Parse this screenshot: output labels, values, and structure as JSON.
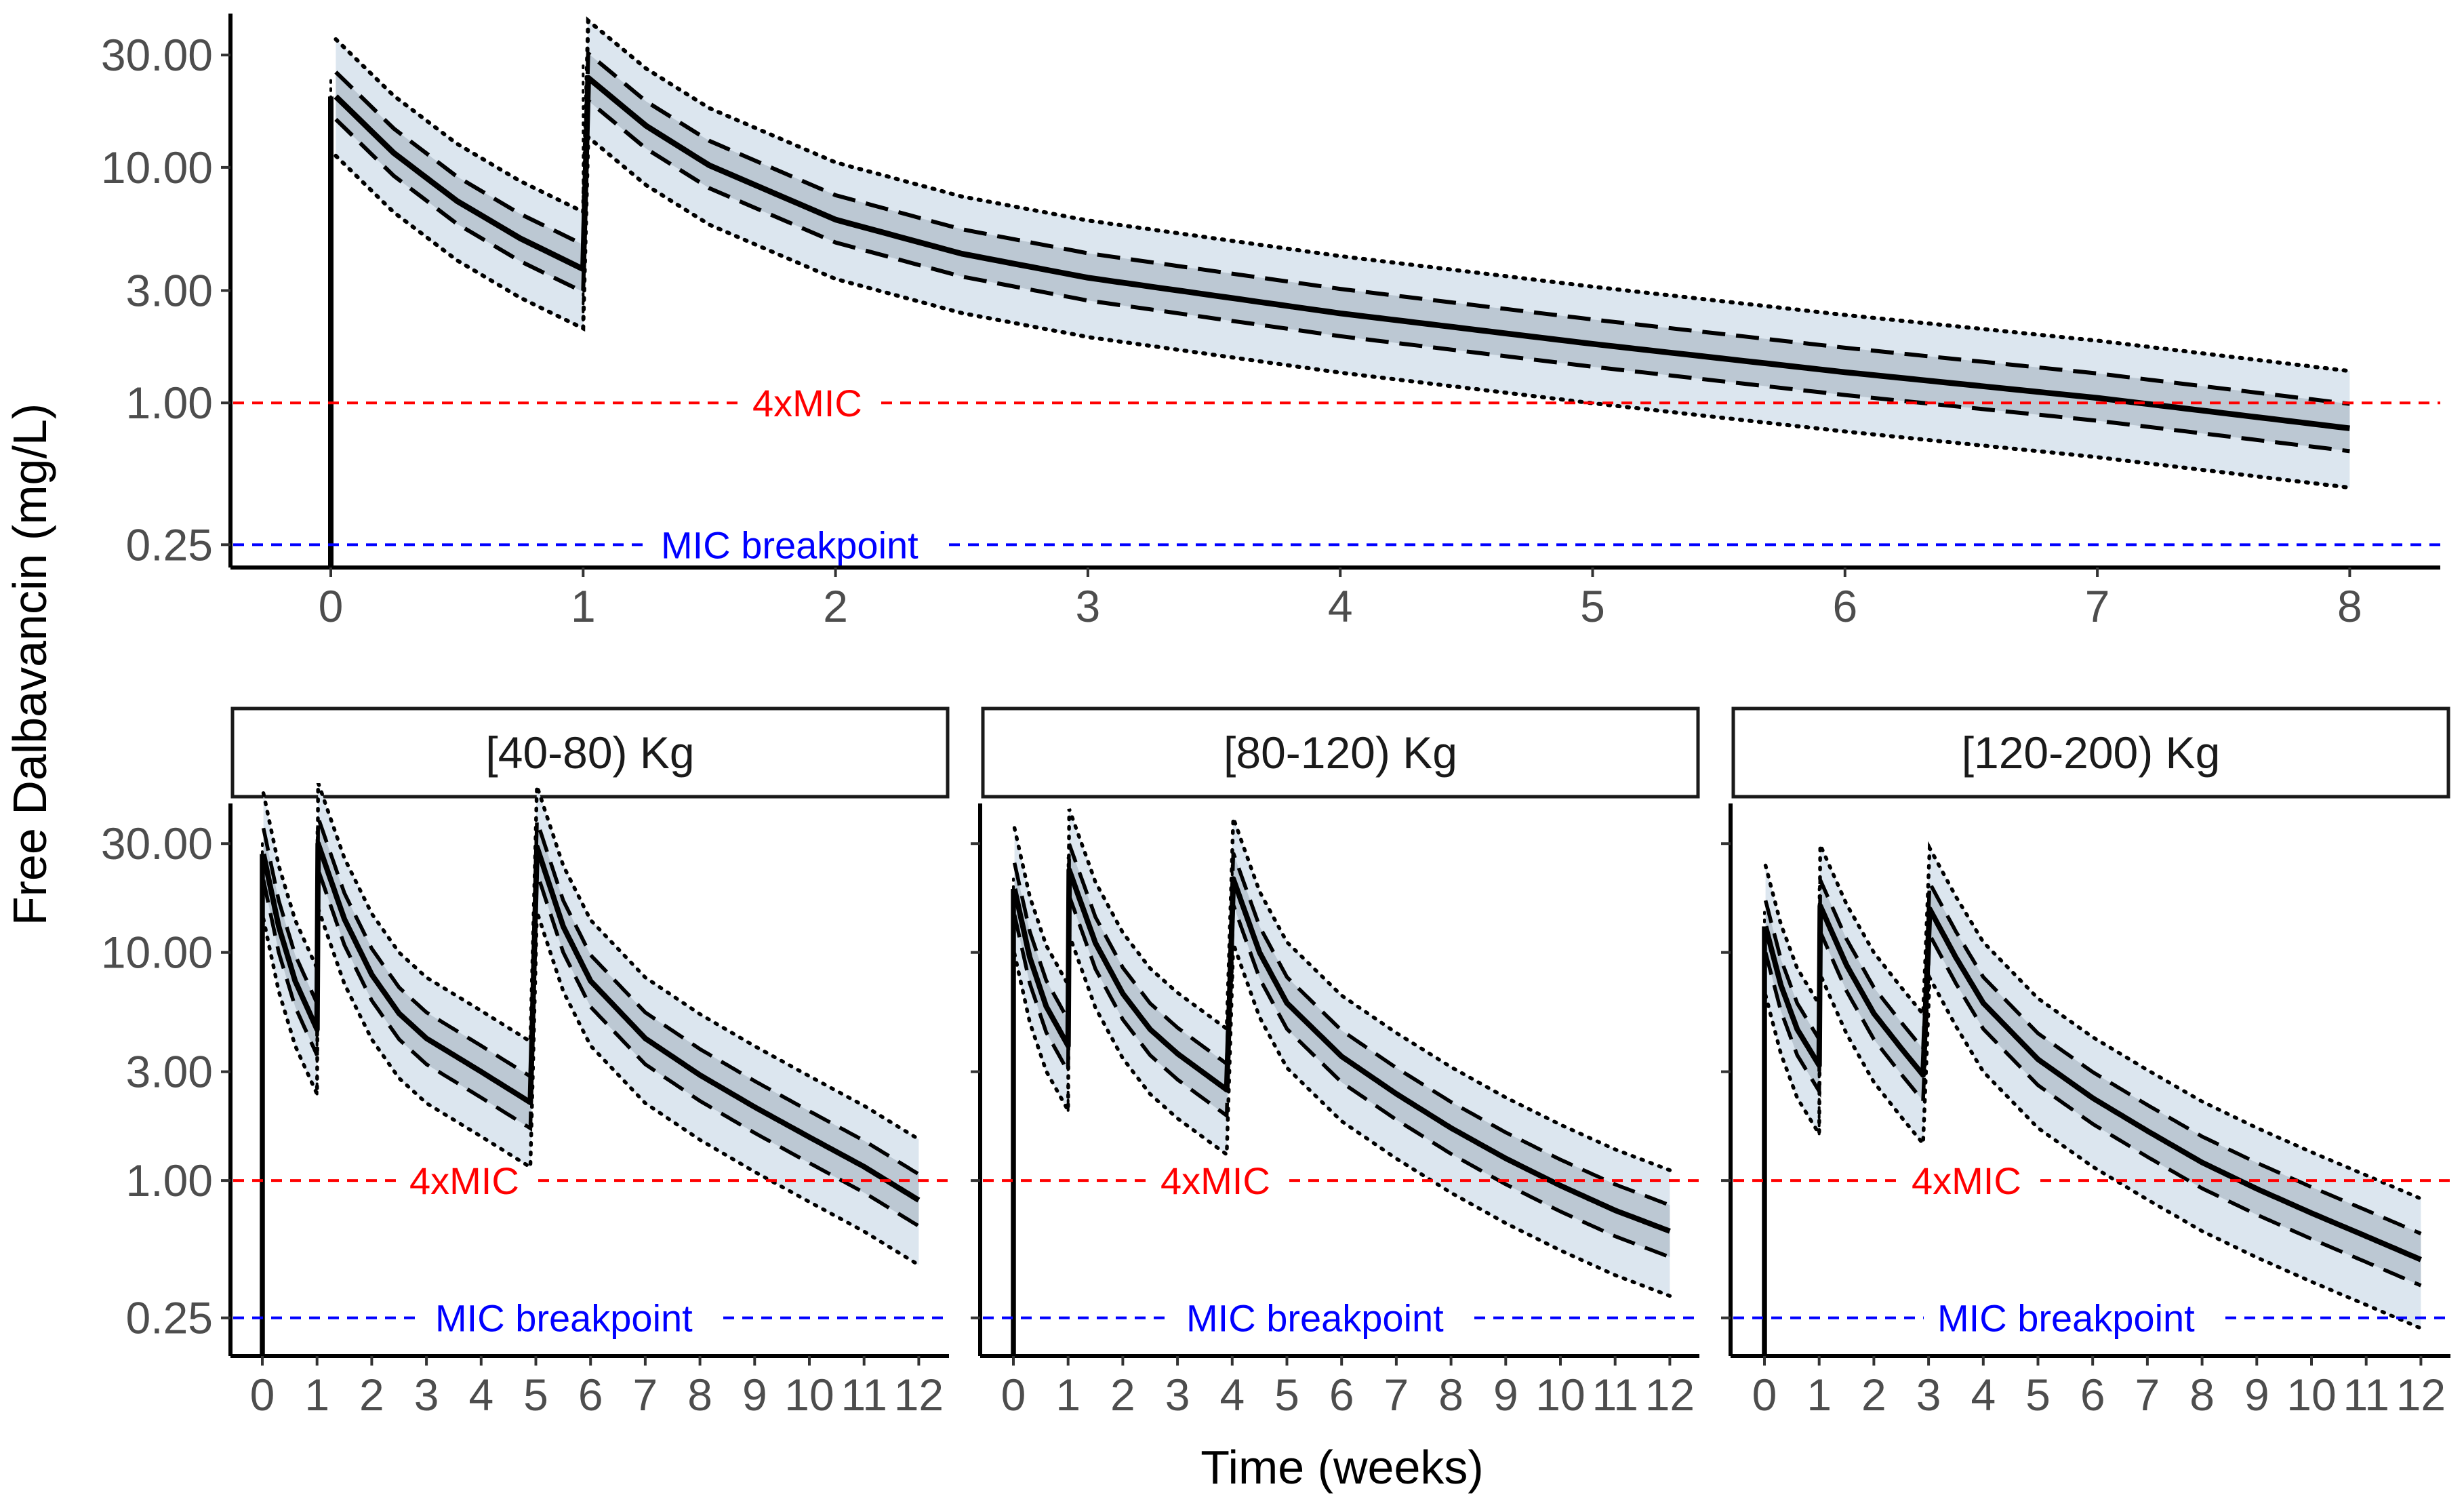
{
  "chart_data": [
    {
      "type": "line",
      "panel": "overall",
      "xlabel": "Time (weeks)",
      "ylabel": "Free Dalbavancin (mg/L)",
      "y_scale": "log",
      "xlim": [
        -0.4,
        8.4
      ],
      "ylim": [
        0.2,
        45
      ],
      "x_ticks": [
        "0",
        "1",
        "2",
        "3",
        "4",
        "5",
        "6",
        "7",
        "8"
      ],
      "y_ticks": [
        "30.00",
        "10.00",
        "3.00",
        "1.00",
        "0.25"
      ],
      "dose_times": [
        0,
        1
      ],
      "dose_heights": [
        24,
        27
      ],
      "curve_points": [
        [
          0.02,
          20
        ],
        [
          0.25,
          11.5
        ],
        [
          0.5,
          7.2
        ],
        [
          0.75,
          5.0
        ],
        [
          1.0,
          3.7
        ],
        [
          1.02,
          24
        ],
        [
          1.25,
          15
        ],
        [
          1.5,
          10.2
        ],
        [
          2,
          6.0
        ],
        [
          2.5,
          4.3
        ],
        [
          3,
          3.4
        ],
        [
          4,
          2.4
        ],
        [
          5,
          1.78
        ],
        [
          6,
          1.35
        ],
        [
          7,
          1.05
        ],
        [
          8,
          0.78
        ]
      ],
      "band_multipliers": {
        "p5": 0.56,
        "p25": 0.8,
        "p75": 1.27,
        "p95": 1.75
      },
      "reference_lines": [
        {
          "name": "4xMIC",
          "value": 1.0,
          "color": "#ff0000",
          "label": "4xMIC"
        },
        {
          "name": "MIC breakpoint",
          "value": 0.25,
          "color": "#0000ff",
          "label": "MIC breakpoint"
        }
      ]
    },
    {
      "type": "line",
      "panel": "[40-80) Kg",
      "title": "[40-80) Kg",
      "y_scale": "log",
      "xlim": [
        -0.5,
        12.5
      ],
      "x_ticks": [
        "0",
        "1",
        "2",
        "3",
        "4",
        "5",
        "6",
        "7",
        "8",
        "9",
        "10",
        "11",
        "12"
      ],
      "y_ticks": [
        "30.00",
        "10.00",
        "3.00",
        "1.00",
        "0.25"
      ],
      "dose_times": [
        0,
        1,
        5
      ],
      "dose_heights": [
        30,
        34,
        32
      ],
      "curve_points": [
        [
          0.02,
          27
        ],
        [
          0.3,
          13
        ],
        [
          0.6,
          7.5
        ],
        [
          1.0,
          4.6
        ],
        [
          1.02,
          30
        ],
        [
          1.5,
          14
        ],
        [
          2,
          8.0
        ],
        [
          2.5,
          5.4
        ],
        [
          3,
          4.2
        ],
        [
          4,
          3.0
        ],
        [
          4.9,
          2.2
        ],
        [
          5.02,
          29
        ],
        [
          5.5,
          13
        ],
        [
          6,
          7.5
        ],
        [
          7,
          4.2
        ],
        [
          8,
          2.9
        ],
        [
          9,
          2.1
        ],
        [
          10,
          1.55
        ],
        [
          11,
          1.15
        ],
        [
          12,
          0.82
        ]
      ],
      "band_multipliers": {
        "p5": 0.52,
        "p25": 0.77,
        "p75": 1.3,
        "p95": 1.85
      },
      "reference_lines": [
        {
          "name": "4xMIC",
          "value": 1.0,
          "color": "#ff0000",
          "label": "4xMIC"
        },
        {
          "name": "MIC breakpoint",
          "value": 0.25,
          "color": "#0000ff",
          "label": "MIC breakpoint"
        }
      ]
    },
    {
      "type": "line",
      "panel": "[80-120) Kg",
      "title": "[80-120) Kg",
      "y_scale": "log",
      "xlim": [
        -0.5,
        12.5
      ],
      "x_ticks": [
        "0",
        "1",
        "2",
        "3",
        "4",
        "5",
        "6",
        "7",
        "8",
        "9",
        "10",
        "11",
        "12"
      ],
      "y_ticks": [
        "30.00",
        "10.00",
        "3.00",
        "1.00",
        "0.25"
      ],
      "dose_times": [
        0,
        1,
        4
      ],
      "dose_heights": [
        21,
        26,
        24
      ],
      "curve_points": [
        [
          0.02,
          19
        ],
        [
          0.3,
          9.5
        ],
        [
          0.6,
          5.8
        ],
        [
          1.0,
          3.9
        ],
        [
          1.02,
          23
        ],
        [
          1.5,
          11
        ],
        [
          2,
          6.6
        ],
        [
          2.5,
          4.6
        ],
        [
          3,
          3.6
        ],
        [
          3.9,
          2.5
        ],
        [
          4.02,
          21
        ],
        [
          4.5,
          10
        ],
        [
          5,
          6.0
        ],
        [
          6,
          3.5
        ],
        [
          7,
          2.4
        ],
        [
          8,
          1.7
        ],
        [
          9,
          1.25
        ],
        [
          10,
          0.95
        ],
        [
          11,
          0.74
        ],
        [
          12,
          0.6
        ]
      ],
      "band_multipliers": {
        "p5": 0.52,
        "p25": 0.77,
        "p75": 1.3,
        "p95": 1.85
      },
      "reference_lines": [
        {
          "name": "4xMIC",
          "value": 1.0,
          "color": "#ff0000",
          "label": "4xMIC"
        },
        {
          "name": "MIC breakpoint",
          "value": 0.25,
          "color": "#0000ff",
          "label": "MIC breakpoint"
        }
      ]
    },
    {
      "type": "line",
      "panel": "[120-200) Kg",
      "title": "[120-200) Kg",
      "y_scale": "log",
      "xlim": [
        -0.5,
        12.5
      ],
      "x_ticks": [
        "0",
        "1",
        "2",
        "3",
        "4",
        "5",
        "6",
        "7",
        "8",
        "9",
        "10",
        "11",
        "12"
      ],
      "y_ticks": [
        "30.00",
        "10.00",
        "3.00",
        "1.00",
        "0.25"
      ],
      "dose_times": [
        0,
        1,
        3
      ],
      "dose_heights": [
        15,
        19,
        17
      ],
      "curve_points": [
        [
          0.02,
          13
        ],
        [
          0.3,
          7.2
        ],
        [
          0.6,
          4.6
        ],
        [
          1.0,
          3.2
        ],
        [
          1.02,
          16
        ],
        [
          1.5,
          8.8
        ],
        [
          2,
          5.4
        ],
        [
          2.5,
          3.8
        ],
        [
          2.9,
          2.9
        ],
        [
          3.02,
          15.5
        ],
        [
          3.5,
          9.5
        ],
        [
          4,
          6.0
        ],
        [
          5,
          3.4
        ],
        [
          6,
          2.3
        ],
        [
          7,
          1.65
        ],
        [
          8,
          1.2
        ],
        [
          9,
          0.92
        ],
        [
          10,
          0.72
        ],
        [
          11,
          0.57
        ],
        [
          12,
          0.45
        ]
      ],
      "band_multipliers": {
        "p5": 0.5,
        "p25": 0.77,
        "p75": 1.3,
        "p95": 1.85
      },
      "reference_lines": [
        {
          "name": "4xMIC",
          "value": 1.0,
          "color": "#ff0000",
          "label": "4xMIC"
        },
        {
          "name": "MIC breakpoint",
          "value": 0.25,
          "color": "#0000ff",
          "label": "MIC breakpoint"
        }
      ]
    }
  ],
  "colors": {
    "outer_band": "#dce6ef",
    "inner_band": "#bcc8d3",
    "line": "#000000",
    "mic4_line": "#ff0000",
    "breakpoint_line": "#0000ff",
    "tick_text": "#4d4d4d"
  }
}
